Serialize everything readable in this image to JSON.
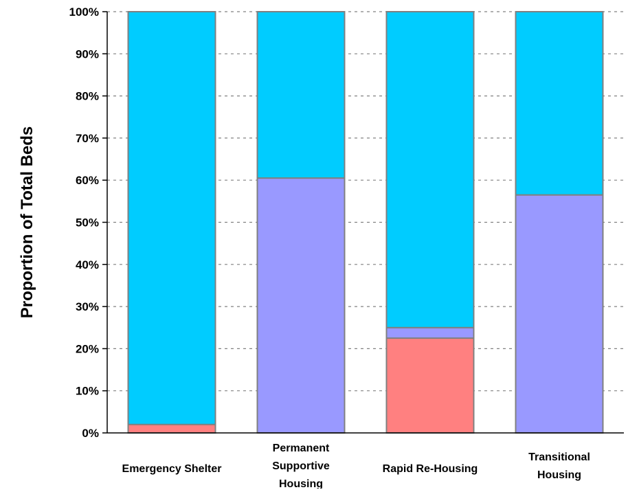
{
  "chart_data": {
    "type": "bar",
    "stacked": true,
    "title": "",
    "xlabel": "",
    "ylabel": "Proportion of Total Beds",
    "ylim": [
      0,
      100
    ],
    "y_ticks": [
      "0%",
      "10%",
      "20%",
      "30%",
      "40%",
      "50%",
      "60%",
      "70%",
      "80%",
      "90%",
      "100%"
    ],
    "y_tick_values": [
      0,
      10,
      20,
      30,
      40,
      50,
      60,
      70,
      80,
      90,
      100
    ],
    "grid": true,
    "legend": "none",
    "categories": [
      [
        "Emergency Shelter"
      ],
      [
        "Permanent",
        "Supportive",
        "Housing"
      ],
      [
        "Rapid Re-Housing"
      ],
      [
        "Transitional",
        "Housing"
      ]
    ],
    "series": [
      {
        "color": "#ff8080",
        "values": [
          2,
          0,
          22.5,
          0
        ]
      },
      {
        "color": "#9999ff",
        "values": [
          0,
          60.5,
          2.5,
          56.5
        ]
      },
      {
        "color": "#00ccff",
        "values": [
          98,
          39.5,
          75,
          43.5
        ]
      }
    ]
  }
}
